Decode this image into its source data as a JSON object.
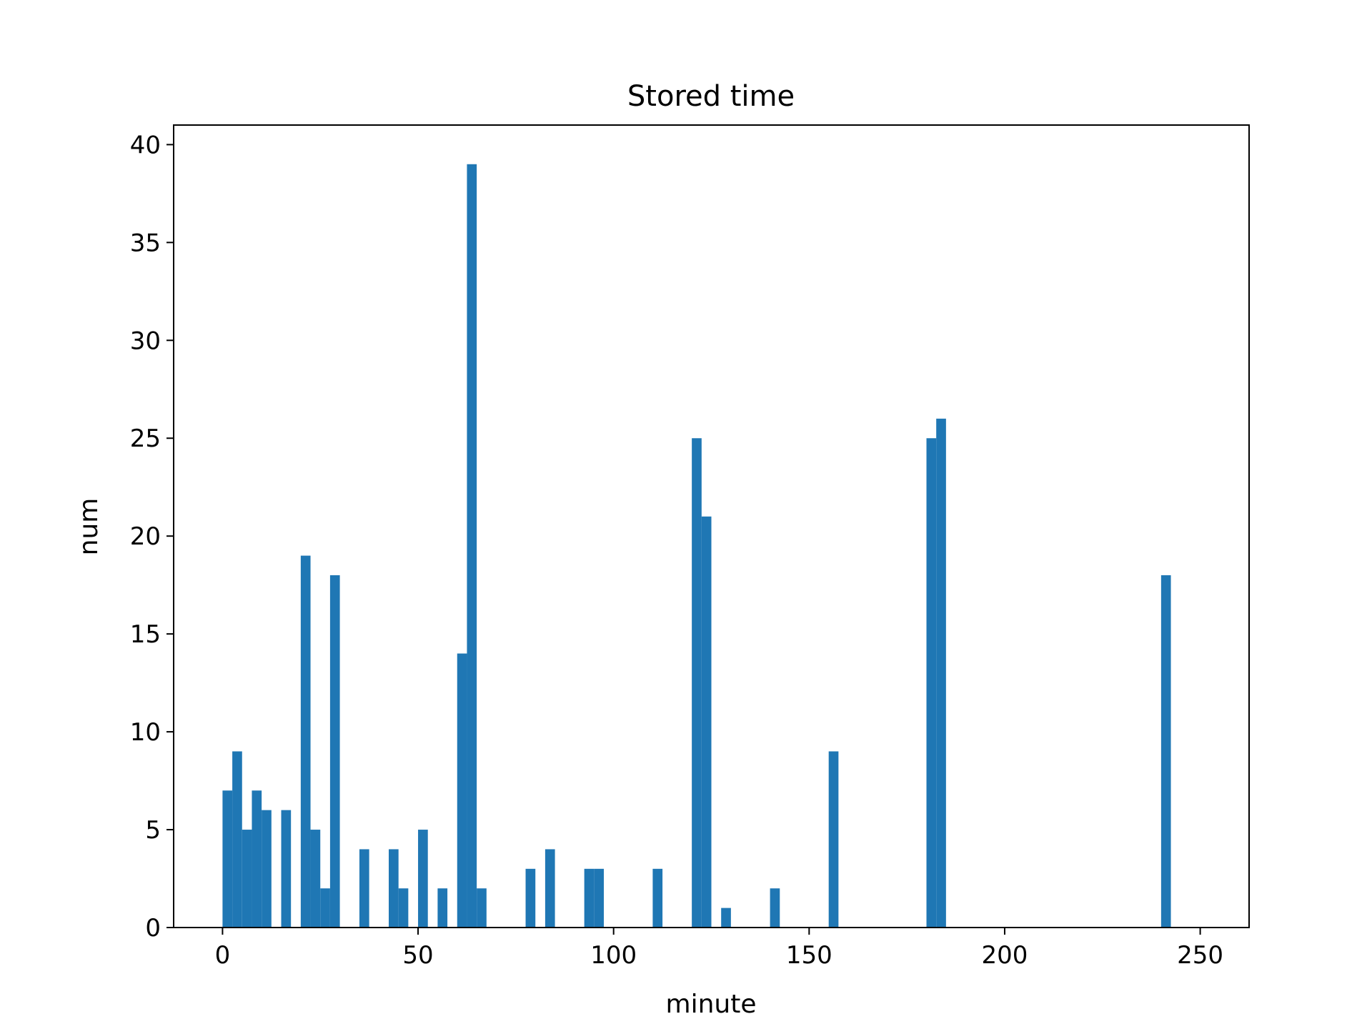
{
  "chart_data": {
    "type": "bar",
    "title": "Stored time",
    "xlabel": "minute",
    "ylabel": "num",
    "xlim": [
      -12.5,
      262.5
    ],
    "ylim": [
      0,
      41
    ],
    "bin_width": 2.5,
    "xticks": [
      0,
      50,
      100,
      150,
      200,
      250
    ],
    "yticks": [
      0,
      5,
      10,
      15,
      20,
      25,
      30,
      35,
      40
    ],
    "grid": false,
    "bar_color": "#1f77b4",
    "bins": [
      {
        "x": 0,
        "value": 7
      },
      {
        "x": 2.5,
        "value": 9
      },
      {
        "x": 5,
        "value": 5
      },
      {
        "x": 7.5,
        "value": 7
      },
      {
        "x": 10,
        "value": 6
      },
      {
        "x": 15,
        "value": 6
      },
      {
        "x": 20,
        "value": 19
      },
      {
        "x": 22.5,
        "value": 5
      },
      {
        "x": 25,
        "value": 2
      },
      {
        "x": 27.5,
        "value": 18
      },
      {
        "x": 35,
        "value": 4
      },
      {
        "x": 42.5,
        "value": 4
      },
      {
        "x": 45,
        "value": 2
      },
      {
        "x": 50,
        "value": 5
      },
      {
        "x": 55,
        "value": 2
      },
      {
        "x": 60,
        "value": 14
      },
      {
        "x": 62.5,
        "value": 39
      },
      {
        "x": 65,
        "value": 2
      },
      {
        "x": 77.5,
        "value": 3
      },
      {
        "x": 82.5,
        "value": 4
      },
      {
        "x": 92.5,
        "value": 3
      },
      {
        "x": 95,
        "value": 3
      },
      {
        "x": 110,
        "value": 3
      },
      {
        "x": 120,
        "value": 25
      },
      {
        "x": 122.5,
        "value": 21
      },
      {
        "x": 127.5,
        "value": 1
      },
      {
        "x": 140,
        "value": 2
      },
      {
        "x": 155,
        "value": 9
      },
      {
        "x": 180,
        "value": 25
      },
      {
        "x": 182.5,
        "value": 26
      },
      {
        "x": 240,
        "value": 18
      }
    ]
  }
}
